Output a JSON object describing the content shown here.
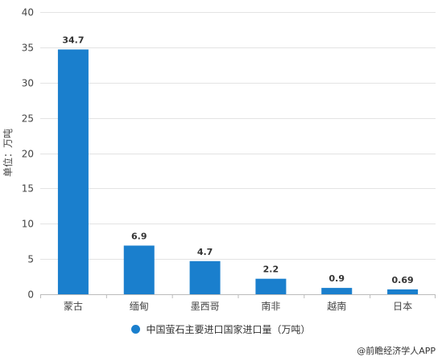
{
  "chart_data": {
    "type": "bar",
    "categories": [
      "蒙古",
      "缅甸",
      "墨西哥",
      "南非",
      "越南",
      "日本"
    ],
    "series": [
      {
        "name": "中国萤石主要进口国家进口量（万吨）",
        "values": [
          34.7,
          6.9,
          4.7,
          2.2,
          0.9,
          0.69
        ],
        "labels": [
          "34.7",
          "6.9",
          "4.7",
          "2.2",
          "0.9",
          "0.69"
        ]
      }
    ],
    "ylabel": "单位：万吨",
    "ylim": [
      0,
      40
    ],
    "yticks": [
      0,
      5,
      10,
      15,
      20,
      25,
      30,
      35,
      40
    ],
    "grid": true,
    "legend_position": "bottom",
    "bar_color": "#1a7fcd"
  },
  "legend": {
    "label": "中国萤石主要进口国家进口量（万吨）"
  },
  "source": "@前瞻经济学人APP"
}
